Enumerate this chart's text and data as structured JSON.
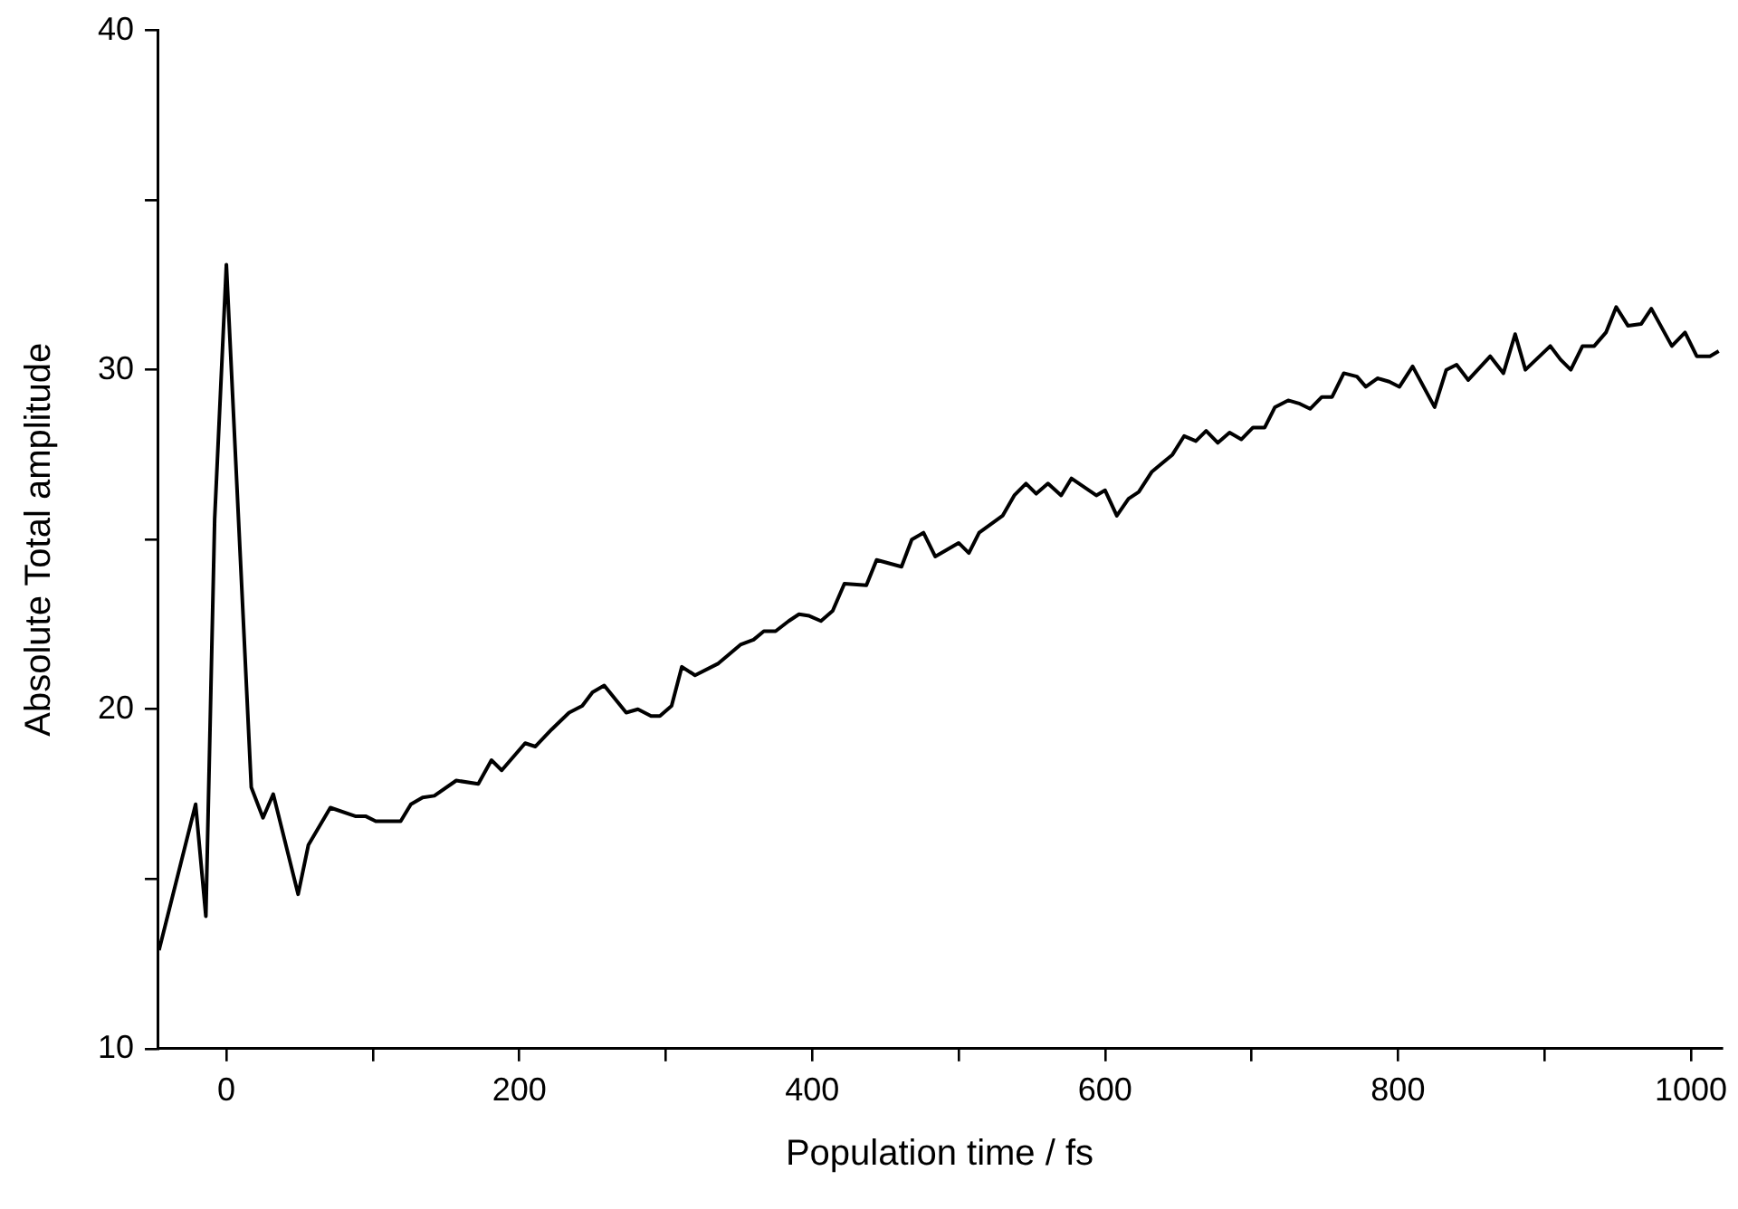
{
  "chart_data": {
    "type": "line",
    "xlabel": "Population time / fs",
    "ylabel": "Absolute Total amplitude",
    "xlim": [
      -47,
      1021
    ],
    "ylim": [
      10,
      40
    ],
    "xticks": [
      0,
      {
        "value": 100,
        "label": null
      },
      200,
      {
        "value": 300,
        "label": null
      },
      400,
      {
        "value": 500,
        "label": null
      },
      600,
      {
        "value": 700,
        "label": null
      },
      800,
      {
        "value": 900,
        "label": null
      },
      1000
    ],
    "yticks": [
      10,
      {
        "value": 15,
        "label": null
      },
      20,
      {
        "value": 25,
        "label": null
      },
      30,
      {
        "value": 35,
        "label": null
      },
      40
    ],
    "grid": false,
    "legend": false,
    "marker": "none",
    "line_style": "solid",
    "series": [
      {
        "color": "#000000",
        "x": [
          -46,
          -21,
          -14,
          -8,
          0,
          17,
          25,
          32,
          49,
          56,
          71,
          88,
          95,
          102,
          119,
          126,
          134,
          142,
          157,
          172,
          181,
          188,
          204,
          211,
          222,
          234,
          243,
          250,
          258,
          273,
          281,
          290,
          296,
          304,
          311,
          320,
          336,
          351,
          360,
          367,
          375,
          384,
          391,
          398,
          406,
          414,
          422,
          437,
          444,
          461,
          468,
          476,
          484,
          492,
          500,
          507,
          514,
          530,
          538,
          546,
          553,
          561,
          570,
          577,
          594,
          600,
          608,
          616,
          623,
          632,
          646,
          654,
          662,
          669,
          677,
          685,
          693,
          701,
          709,
          716,
          725,
          733,
          740,
          748,
          755,
          763,
          772,
          778,
          786,
          794,
          801,
          810,
          825,
          833,
          840,
          848,
          863,
          872,
          880,
          887,
          904,
          911,
          918,
          926,
          934,
          942,
          949,
          957,
          966,
          973,
          987,
          996,
          1004,
          1013,
          1019
        ],
        "values": [
          12.9,
          17.2,
          13.9,
          25.6,
          33.1,
          17.7,
          16.8,
          17.5,
          14.55,
          16.0,
          17.1,
          16.85,
          16.85,
          16.7,
          16.7,
          17.2,
          17.4,
          17.45,
          17.9,
          17.8,
          18.5,
          18.2,
          19.0,
          18.9,
          19.4,
          19.9,
          20.1,
          20.5,
          20.7,
          19.9,
          20.0,
          19.8,
          19.8,
          20.1,
          21.25,
          21.0,
          21.35,
          21.9,
          22.05,
          22.3,
          22.3,
          22.6,
          22.8,
          22.75,
          22.6,
          22.9,
          23.7,
          23.65,
          24.4,
          24.2,
          25.0,
          25.2,
          24.5,
          24.7,
          24.9,
          24.6,
          25.2,
          25.7,
          26.3,
          26.65,
          26.35,
          26.65,
          26.3,
          26.8,
          26.3,
          26.45,
          25.7,
          26.2,
          26.4,
          27.0,
          27.5,
          28.05,
          27.9,
          28.2,
          27.85,
          28.15,
          27.95,
          28.3,
          28.3,
          28.9,
          29.1,
          29.0,
          28.85,
          29.2,
          29.2,
          29.9,
          29.8,
          29.5,
          29.75,
          29.65,
          29.5,
          30.1,
          28.9,
          30.0,
          30.15,
          29.7,
          30.4,
          29.9,
          31.05,
          30.0,
          30.7,
          30.3,
          30.0,
          30.7,
          30.7,
          31.1,
          31.85,
          31.3,
          31.35,
          31.8,
          30.7,
          31.1,
          30.4,
          30.4,
          30.55
        ]
      }
    ]
  }
}
